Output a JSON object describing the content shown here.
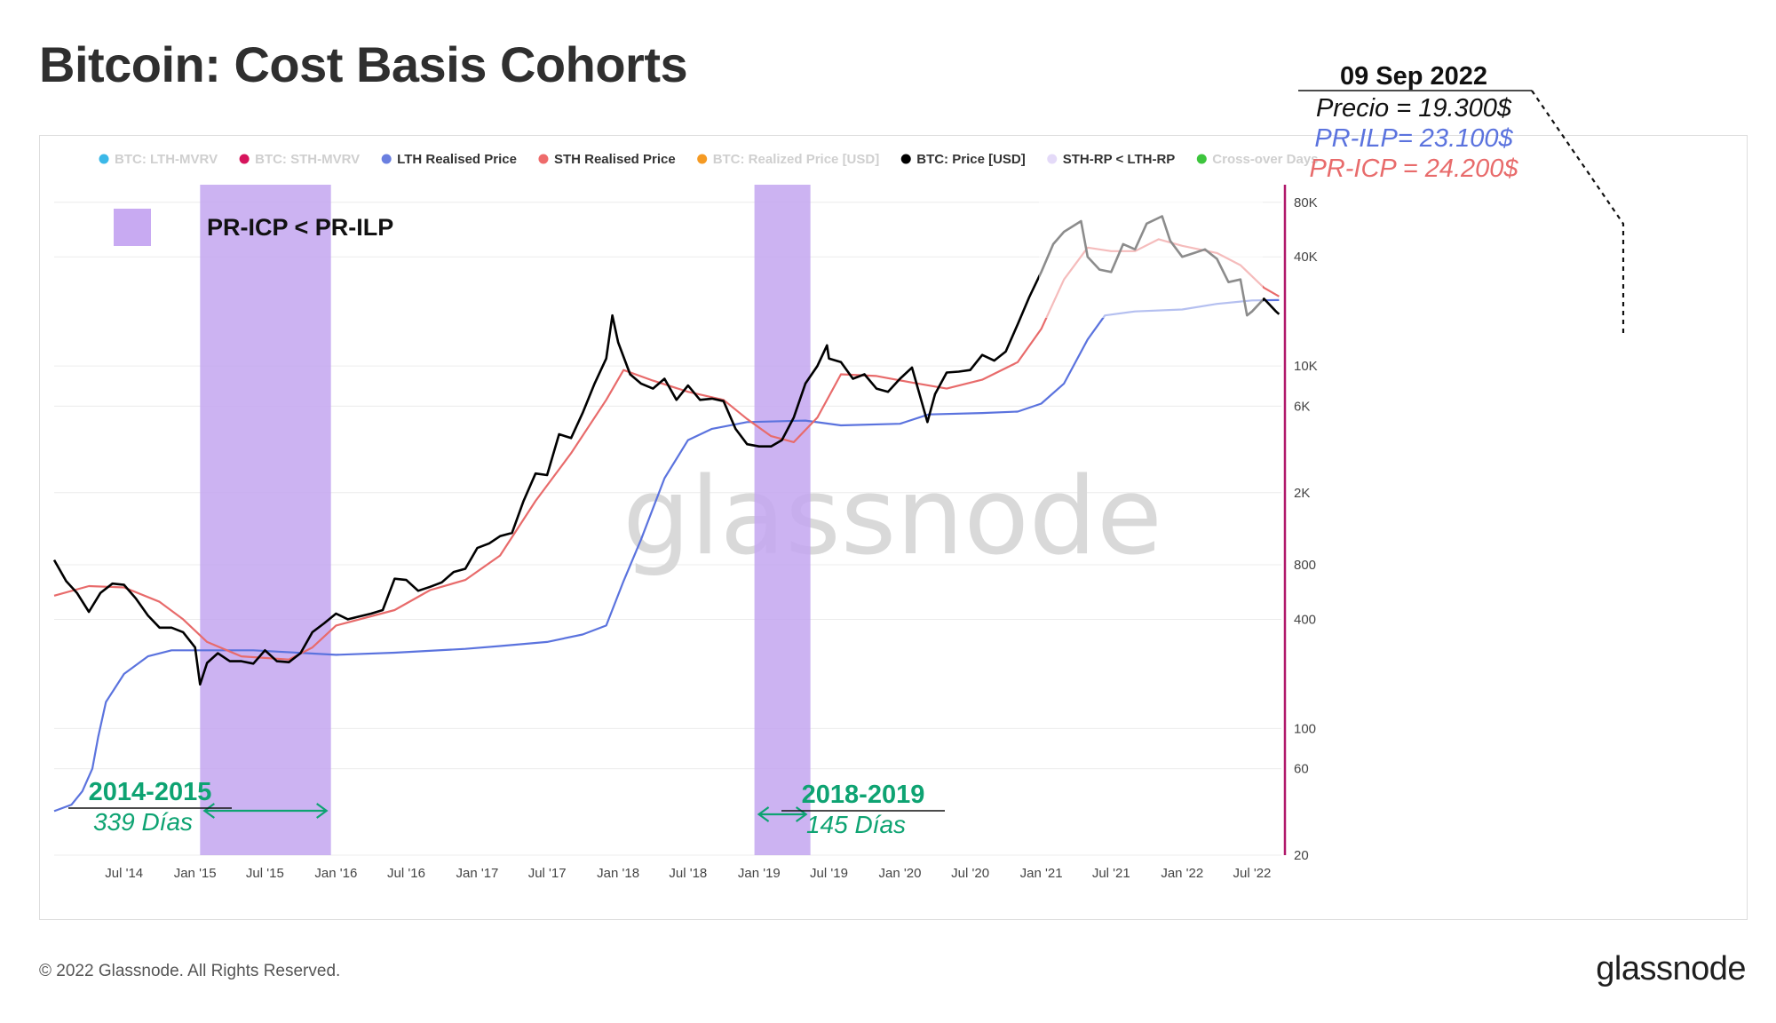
{
  "title": "Bitcoin: Cost Basis Cohorts",
  "footer": {
    "copyright": "© 2022 Glassnode. All Rights Reserved.",
    "logo_text": "glassnode"
  },
  "watermark": "glassnode",
  "legend_items": [
    {
      "label": "BTC: LTH-MVRV",
      "color": "#3bb8e8",
      "active": false
    },
    {
      "label": "BTC: STH-MVRV",
      "color": "#d6145c",
      "active": false
    },
    {
      "label": "LTH Realised Price",
      "color": "#6a7fe0",
      "active": true
    },
    {
      "label": "STH Realised Price",
      "color": "#ee6b6b",
      "active": true
    },
    {
      "label": "BTC: Realized Price [USD]",
      "color": "#f59a23",
      "active": false
    },
    {
      "label": "BTC: Price [USD]",
      "color": "#000000",
      "active": true
    },
    {
      "label": "STH-RP < LTH-RP",
      "color": "#e4daf8",
      "active": true
    },
    {
      "label": "Cross-over Days",
      "color": "#3dc53d",
      "active": false
    }
  ],
  "box_legend": {
    "label": "PR-ICP < PR-ILP",
    "color": "#c8aaf2"
  },
  "annotation": {
    "date": "09 Sep 2022",
    "price": "Precio = 19.300$",
    "lth": "PR-ILP= 23.100$",
    "sth": "PR-ICP = 24.200$"
  },
  "periods": [
    {
      "label": "2014-2015",
      "duration": "339 Días",
      "start": "2015-01-14",
      "end": "2015-12-19"
    },
    {
      "label": "2018-2019",
      "duration": "145 Días",
      "start": "2018-12-20",
      "end": "2019-05-14"
    }
  ],
  "colors": {
    "price": "#000000",
    "lth": "#5b73de",
    "sth": "#e86b6b",
    "shade": "#c3a6f0",
    "accent_green": "#0ea372",
    "right_axis": "#b0186a"
  },
  "chart_data": {
    "type": "line",
    "y_scale": "log",
    "ylim": [
      20,
      100000
    ],
    "xlim": [
      "2014-01-01",
      "2022-09-15"
    ],
    "y_ticks": [
      {
        "value": 20,
        "label": "20"
      },
      {
        "value": 60,
        "label": "60"
      },
      {
        "value": 100,
        "label": "100"
      },
      {
        "value": 400,
        "label": "400"
      },
      {
        "value": 800,
        "label": "800"
      },
      {
        "value": 2000,
        "label": "2K"
      },
      {
        "value": 6000,
        "label": "6K"
      },
      {
        "value": 10000,
        "label": "10K"
      },
      {
        "value": 40000,
        "label": "40K"
      },
      {
        "value": 80000,
        "label": "80K"
      }
    ],
    "x_ticks": [
      {
        "date": "2014-07-01",
        "label": "Jul '14"
      },
      {
        "date": "2015-01-01",
        "label": "Jan '15"
      },
      {
        "date": "2015-07-01",
        "label": "Jul '15"
      },
      {
        "date": "2016-01-01",
        "label": "Jan '16"
      },
      {
        "date": "2016-07-01",
        "label": "Jul '16"
      },
      {
        "date": "2017-01-01",
        "label": "Jan '17"
      },
      {
        "date": "2017-07-01",
        "label": "Jul '17"
      },
      {
        "date": "2018-01-01",
        "label": "Jan '18"
      },
      {
        "date": "2018-07-01",
        "label": "Jul '18"
      },
      {
        "date": "2019-01-01",
        "label": "Jan '19"
      },
      {
        "date": "2019-07-01",
        "label": "Jul '19"
      },
      {
        "date": "2020-01-01",
        "label": "Jan '20"
      },
      {
        "date": "2020-07-01",
        "label": "Jul '20"
      },
      {
        "date": "2021-01-01",
        "label": "Jan '21"
      },
      {
        "date": "2021-07-01",
        "label": "Jul '21"
      },
      {
        "date": "2022-01-01",
        "label": "Jan '22"
      },
      {
        "date": "2022-07-01",
        "label": "Jul '22"
      }
    ],
    "series": [
      {
        "name": "BTC: Price [USD]",
        "color": "#000000",
        "points": [
          [
            "2014-01-01",
            850
          ],
          [
            "2014-02-01",
            650
          ],
          [
            "2014-03-01",
            560
          ],
          [
            "2014-04-01",
            440
          ],
          [
            "2014-05-01",
            560
          ],
          [
            "2014-06-01",
            630
          ],
          [
            "2014-07-01",
            620
          ],
          [
            "2014-08-01",
            520
          ],
          [
            "2014-09-01",
            420
          ],
          [
            "2014-10-01",
            360
          ],
          [
            "2014-11-01",
            360
          ],
          [
            "2014-12-01",
            340
          ],
          [
            "2015-01-01",
            280
          ],
          [
            "2015-01-14",
            175
          ],
          [
            "2015-02-01",
            230
          ],
          [
            "2015-03-01",
            260
          ],
          [
            "2015-04-01",
            235
          ],
          [
            "2015-05-01",
            235
          ],
          [
            "2015-06-01",
            228
          ],
          [
            "2015-07-01",
            270
          ],
          [
            "2015-08-01",
            235
          ],
          [
            "2015-09-01",
            232
          ],
          [
            "2015-10-01",
            260
          ],
          [
            "2015-11-01",
            340
          ],
          [
            "2015-12-01",
            380
          ],
          [
            "2016-01-01",
            430
          ],
          [
            "2016-02-01",
            400
          ],
          [
            "2016-03-01",
            415
          ],
          [
            "2016-04-01",
            430
          ],
          [
            "2016-05-01",
            450
          ],
          [
            "2016-06-01",
            670
          ],
          [
            "2016-07-01",
            660
          ],
          [
            "2016-08-01",
            575
          ],
          [
            "2016-09-01",
            605
          ],
          [
            "2016-10-01",
            640
          ],
          [
            "2016-11-01",
            730
          ],
          [
            "2016-12-01",
            760
          ],
          [
            "2017-01-01",
            990
          ],
          [
            "2017-02-01",
            1050
          ],
          [
            "2017-03-01",
            1150
          ],
          [
            "2017-04-01",
            1200
          ],
          [
            "2017-05-01",
            1800
          ],
          [
            "2017-06-01",
            2550
          ],
          [
            "2017-07-01",
            2500
          ],
          [
            "2017-08-01",
            4200
          ],
          [
            "2017-09-01",
            4000
          ],
          [
            "2017-10-01",
            5500
          ],
          [
            "2017-11-01",
            8000
          ],
          [
            "2017-12-01",
            11000
          ],
          [
            "2017-12-17",
            19000
          ],
          [
            "2018-01-01",
            13500
          ],
          [
            "2018-02-01",
            9000
          ],
          [
            "2018-03-01",
            8000
          ],
          [
            "2018-04-01",
            7500
          ],
          [
            "2018-05-01",
            8500
          ],
          [
            "2018-06-01",
            6500
          ],
          [
            "2018-07-01",
            7800
          ],
          [
            "2018-08-01",
            6500
          ],
          [
            "2018-09-01",
            6600
          ],
          [
            "2018-10-01",
            6400
          ],
          [
            "2018-11-01",
            4500
          ],
          [
            "2018-12-01",
            3700
          ],
          [
            "2019-01-01",
            3600
          ],
          [
            "2019-02-01",
            3600
          ],
          [
            "2019-03-01",
            3900
          ],
          [
            "2019-04-01",
            5200
          ],
          [
            "2019-05-01",
            8000
          ],
          [
            "2019-06-01",
            10000
          ],
          [
            "2019-06-26",
            13000
          ],
          [
            "2019-07-01",
            11000
          ],
          [
            "2019-08-01",
            10500
          ],
          [
            "2019-09-01",
            8500
          ],
          [
            "2019-10-01",
            9000
          ],
          [
            "2019-11-01",
            7500
          ],
          [
            "2019-12-01",
            7200
          ],
          [
            "2020-01-01",
            8500
          ],
          [
            "2020-02-01",
            9800
          ],
          [
            "2020-03-12",
            4900
          ],
          [
            "2020-04-01",
            7000
          ],
          [
            "2020-05-01",
            9200
          ],
          [
            "2020-06-01",
            9300
          ],
          [
            "2020-07-01",
            9500
          ],
          [
            "2020-08-01",
            11500
          ],
          [
            "2020-09-01",
            10700
          ],
          [
            "2020-10-01",
            12000
          ],
          [
            "2020-11-01",
            17000
          ],
          [
            "2020-12-01",
            24000
          ],
          [
            "2021-01-01",
            33000
          ],
          [
            "2021-02-01",
            47000
          ],
          [
            "2021-03-01",
            55000
          ],
          [
            "2021-04-14",
            63000
          ],
          [
            "2021-05-01",
            40000
          ],
          [
            "2021-06-01",
            34000
          ],
          [
            "2021-07-01",
            33000
          ],
          [
            "2021-08-01",
            47000
          ],
          [
            "2021-09-01",
            44000
          ],
          [
            "2021-10-01",
            61000
          ],
          [
            "2021-11-10",
            67000
          ],
          [
            "2021-12-01",
            49000
          ],
          [
            "2022-01-01",
            40000
          ],
          [
            "2022-02-01",
            42000
          ],
          [
            "2022-03-01",
            44000
          ],
          [
            "2022-04-01",
            39000
          ],
          [
            "2022-05-01",
            29000
          ],
          [
            "2022-06-01",
            30000
          ],
          [
            "2022-06-18",
            19000
          ],
          [
            "2022-07-01",
            20000
          ],
          [
            "2022-08-01",
            23500
          ],
          [
            "2022-09-01",
            20000
          ],
          [
            "2022-09-09",
            19300
          ]
        ]
      },
      {
        "name": "STH Realised Price",
        "color": "#e86b6b",
        "points": [
          [
            "2014-01-01",
            540
          ],
          [
            "2014-04-01",
            610
          ],
          [
            "2014-07-01",
            600
          ],
          [
            "2014-10-01",
            500
          ],
          [
            "2014-12-01",
            400
          ],
          [
            "2015-02-01",
            300
          ],
          [
            "2015-05-01",
            250
          ],
          [
            "2015-09-01",
            240
          ],
          [
            "2015-11-01",
            280
          ],
          [
            "2016-01-01",
            370
          ],
          [
            "2016-06-01",
            450
          ],
          [
            "2016-09-01",
            580
          ],
          [
            "2016-12-01",
            660
          ],
          [
            "2017-03-01",
            900
          ],
          [
            "2017-06-01",
            1800
          ],
          [
            "2017-09-01",
            3300
          ],
          [
            "2017-12-01",
            6500
          ],
          [
            "2018-01-15",
            9500
          ],
          [
            "2018-04-01",
            8300
          ],
          [
            "2018-07-01",
            7200
          ],
          [
            "2018-10-01",
            6500
          ],
          [
            "2018-12-01",
            5100
          ],
          [
            "2019-02-01",
            4100
          ],
          [
            "2019-04-01",
            3800
          ],
          [
            "2019-06-01",
            5200
          ],
          [
            "2019-08-01",
            9000
          ],
          [
            "2019-11-01",
            8800
          ],
          [
            "2020-02-01",
            8100
          ],
          [
            "2020-05-01",
            7500
          ],
          [
            "2020-08-01",
            8400
          ],
          [
            "2020-11-01",
            10500
          ],
          [
            "2021-01-01",
            16000
          ],
          [
            "2021-03-01",
            30000
          ],
          [
            "2021-05-01",
            45000
          ],
          [
            "2021-07-01",
            43000
          ],
          [
            "2021-09-01",
            43000
          ],
          [
            "2021-11-01",
            50000
          ],
          [
            "2022-01-01",
            46000
          ],
          [
            "2022-04-01",
            42000
          ],
          [
            "2022-06-01",
            36000
          ],
          [
            "2022-08-01",
            27000
          ],
          [
            "2022-09-09",
            24200
          ]
        ]
      },
      {
        "name": "LTH Realised Price",
        "color": "#5b73de",
        "points": [
          [
            "2014-01-01",
            35
          ],
          [
            "2014-02-15",
            38
          ],
          [
            "2014-03-15",
            45
          ],
          [
            "2014-04-10",
            60
          ],
          [
            "2014-04-25",
            90
          ],
          [
            "2014-05-15",
            140
          ],
          [
            "2014-07-01",
            200
          ],
          [
            "2014-09-01",
            250
          ],
          [
            "2014-11-01",
            270
          ],
          [
            "2015-06-01",
            270
          ],
          [
            "2016-01-01",
            255
          ],
          [
            "2016-06-01",
            262
          ],
          [
            "2016-12-01",
            275
          ],
          [
            "2017-03-01",
            285
          ],
          [
            "2017-07-01",
            300
          ],
          [
            "2017-10-01",
            330
          ],
          [
            "2017-12-01",
            370
          ],
          [
            "2018-01-15",
            650
          ],
          [
            "2018-03-01",
            1100
          ],
          [
            "2018-05-01",
            2400
          ],
          [
            "2018-07-01",
            3900
          ],
          [
            "2018-09-01",
            4500
          ],
          [
            "2018-12-01",
            4900
          ],
          [
            "2019-05-01",
            5000
          ],
          [
            "2019-08-01",
            4700
          ],
          [
            "2020-01-01",
            4800
          ],
          [
            "2020-03-15",
            5400
          ],
          [
            "2020-08-01",
            5500
          ],
          [
            "2020-11-01",
            5600
          ],
          [
            "2021-01-01",
            6200
          ],
          [
            "2021-03-01",
            8000
          ],
          [
            "2021-05-01",
            14000
          ],
          [
            "2021-06-15",
            19000
          ],
          [
            "2021-09-01",
            20000
          ],
          [
            "2022-01-01",
            20500
          ],
          [
            "2022-04-01",
            22000
          ],
          [
            "2022-07-01",
            23000
          ],
          [
            "2022-09-09",
            23100
          ]
        ]
      }
    ]
  }
}
